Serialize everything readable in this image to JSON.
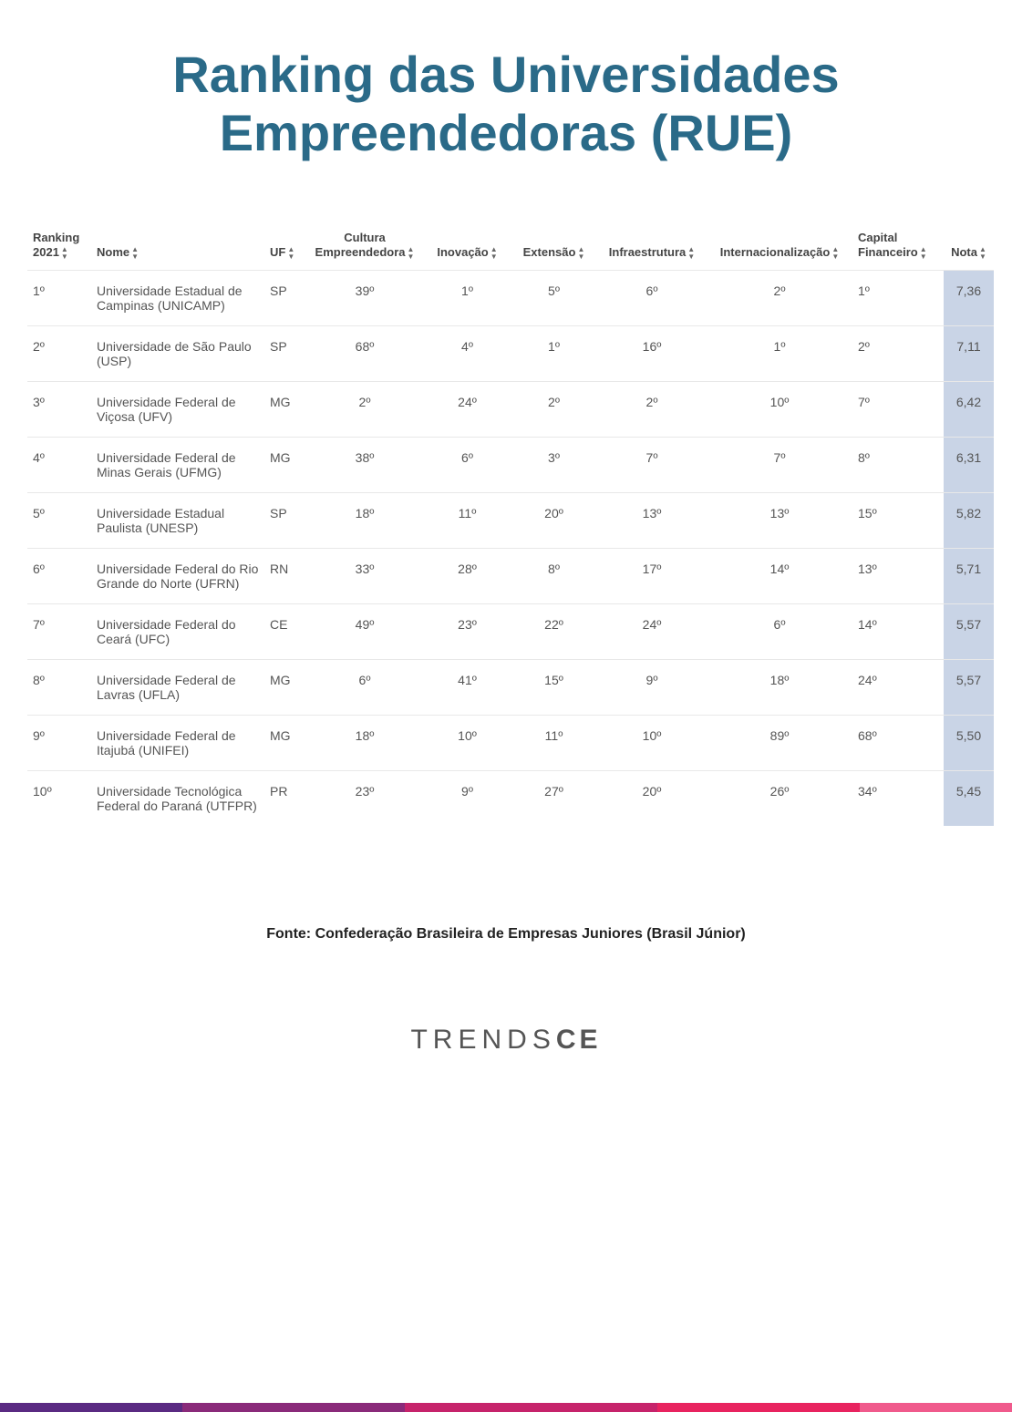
{
  "title": "Ranking das Universidades Empreendedoras (RUE)",
  "title_color": "#2a6a88",
  "columns": [
    {
      "key": "rank",
      "label": "Ranking 2021",
      "align": "left"
    },
    {
      "key": "name",
      "label": "Nome",
      "align": "left"
    },
    {
      "key": "uf",
      "label": "UF",
      "align": "left"
    },
    {
      "key": "cult",
      "label": "Cultura Empreendedora",
      "align": "center"
    },
    {
      "key": "inov",
      "label": "Inovação",
      "align": "center"
    },
    {
      "key": "ext",
      "label": "Extensão",
      "align": "center"
    },
    {
      "key": "infra",
      "label": "Infraestrutura",
      "align": "center"
    },
    {
      "key": "intl",
      "label": "Internacionalização",
      "align": "center"
    },
    {
      "key": "cap",
      "label": "Capital Financeiro",
      "align": "left"
    },
    {
      "key": "nota",
      "label": "Nota",
      "align": "center"
    }
  ],
  "nota_highlight_bg": "#c9d4e6",
  "header_text_color": "#444444",
  "body_text_color": "#555555",
  "row_border_color": "#e8e8e8",
  "rows": [
    {
      "rank": "1º",
      "name": "Universidade Estadual de Campinas (UNICAMP)",
      "uf": "SP",
      "cult": "39º",
      "inov": "1º",
      "ext": "5º",
      "infra": "6º",
      "intl": "2º",
      "cap": "1º",
      "nota": "7,36"
    },
    {
      "rank": "2º",
      "name": "Universidade de São Paulo (USP)",
      "uf": "SP",
      "cult": "68º",
      "inov": "4º",
      "ext": "1º",
      "infra": "16º",
      "intl": "1º",
      "cap": "2º",
      "nota": "7,11"
    },
    {
      "rank": "3º",
      "name": "Universidade Federal de Viçosa (UFV)",
      "uf": "MG",
      "cult": "2º",
      "inov": "24º",
      "ext": "2º",
      "infra": "2º",
      "intl": "10º",
      "cap": "7º",
      "nota": "6,42"
    },
    {
      "rank": "4º",
      "name": "Universidade Federal de Minas Gerais (UFMG)",
      "uf": "MG",
      "cult": "38º",
      "inov": "6º",
      "ext": "3º",
      "infra": "7º",
      "intl": "7º",
      "cap": "8º",
      "nota": "6,31"
    },
    {
      "rank": "5º",
      "name": "Universidade Estadual Paulista (UNESP)",
      "uf": "SP",
      "cult": "18º",
      "inov": "11º",
      "ext": "20º",
      "infra": "13º",
      "intl": "13º",
      "cap": "15º",
      "nota": "5,82"
    },
    {
      "rank": "6º",
      "name": "Universidade Federal do Rio Grande do Norte (UFRN)",
      "uf": "RN",
      "cult": "33º",
      "inov": "28º",
      "ext": "8º",
      "infra": "17º",
      "intl": "14º",
      "cap": "13º",
      "nota": "5,71"
    },
    {
      "rank": "7º",
      "name": "Universidade Federal do Ceará (UFC)",
      "uf": "CE",
      "cult": "49º",
      "inov": "23º",
      "ext": "22º",
      "infra": "24º",
      "intl": "6º",
      "cap": "14º",
      "nota": "5,57"
    },
    {
      "rank": "8º",
      "name": "Universidade Federal de Lavras (UFLA)",
      "uf": "MG",
      "cult": "6º",
      "inov": "41º",
      "ext": "15º",
      "infra": "9º",
      "intl": "18º",
      "cap": "24º",
      "nota": "5,57"
    },
    {
      "rank": "9º",
      "name": "Universidade Federal de Itajubá (UNIFEI)",
      "uf": "MG",
      "cult": "18º",
      "inov": "10º",
      "ext": "11º",
      "infra": "10º",
      "intl": "89º",
      "cap": "68º",
      "nota": "5,50"
    },
    {
      "rank": "10º",
      "name": "Universidade Tecnológica Federal do Paraná (UTFPR)",
      "uf": "PR",
      "cult": "23º",
      "inov": "9º",
      "ext": "27º",
      "infra": "20º",
      "intl": "26º",
      "cap": "34º",
      "nota": "5,45"
    }
  ],
  "source_text": "Fonte: Confederação Brasileira de Empresas Juniores (Brasil Júnior)",
  "logo": {
    "light": "TRENDS",
    "bold": "CE",
    "color": "#555555"
  },
  "footer_gradient": [
    {
      "color": "#5a2a82",
      "width_pct": 18
    },
    {
      "color": "#8a2a7a",
      "width_pct": 22
    },
    {
      "color": "#c6236b",
      "width_pct": 25
    },
    {
      "color": "#e8235f",
      "width_pct": 20
    },
    {
      "color": "#f05a8c",
      "width_pct": 15
    }
  ]
}
